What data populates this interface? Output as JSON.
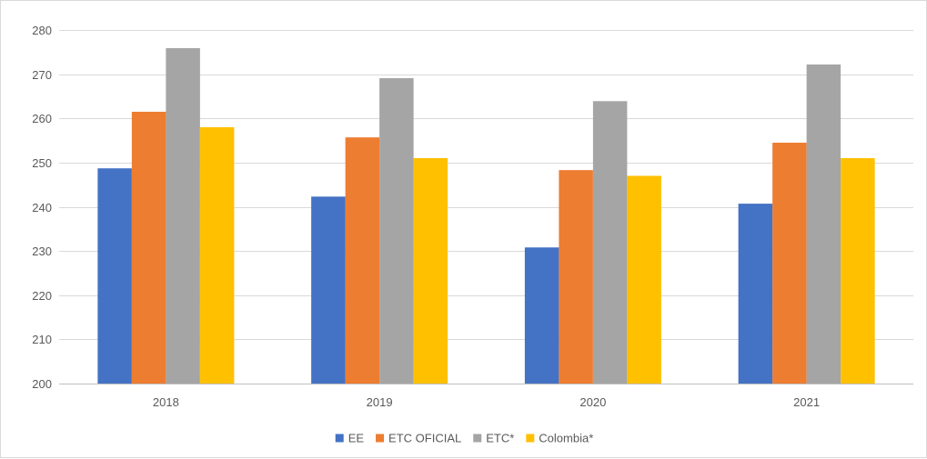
{
  "chart_data": {
    "type": "bar",
    "title": "",
    "xlabel": "",
    "ylabel": "",
    "categories": [
      "2018",
      "2019",
      "2020",
      "2021"
    ],
    "series": [
      {
        "name": "EE",
        "color": "#4472C4",
        "values": [
          248.7,
          242.3,
          230.8,
          240.7
        ]
      },
      {
        "name": "ETC OFICIAL",
        "color": "#ED7D31",
        "values": [
          261.5,
          255.7,
          248.3,
          254.5
        ]
      },
      {
        "name": "ETC*",
        "color": "#A5A5A5",
        "values": [
          275.9,
          269.1,
          263.9,
          272.2
        ]
      },
      {
        "name": "Colombia*",
        "color": "#FFC000",
        "values": [
          258.0,
          251.0,
          247.0,
          251.0
        ]
      }
    ],
    "ylim": [
      200,
      280
    ],
    "yticks": [
      200,
      210,
      220,
      230,
      240,
      250,
      260,
      270,
      280
    ],
    "grid": true,
    "legend_position": "bottom"
  }
}
